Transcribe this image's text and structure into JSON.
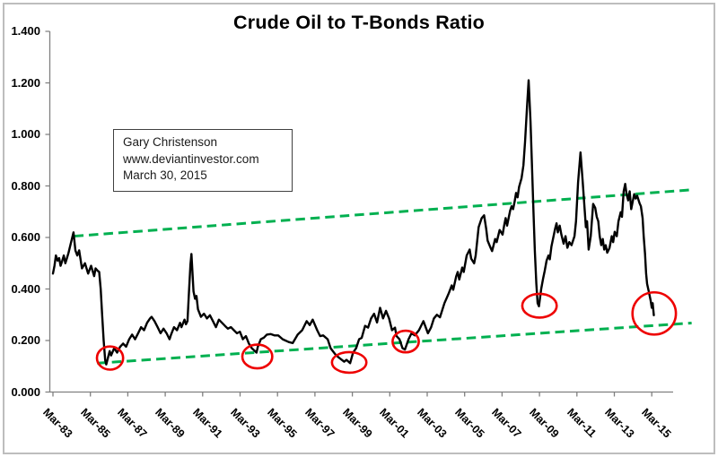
{
  "title": "Crude Oil to T-Bonds Ratio",
  "annotation": {
    "lines": [
      "Gary Christenson",
      "www.deviantinvestor.com",
      "March 30, 2015"
    ]
  },
  "colors": {
    "series": "#000000",
    "trendline": "#00B050",
    "highlight": "#EE0000",
    "axis": "#808080",
    "frame": "#BDBDBD"
  },
  "chart_data": {
    "type": "line",
    "title": "Crude Oil to T-Bonds Ratio",
    "xlabel": "",
    "ylabel": "",
    "grid": false,
    "legend": null,
    "x_axis": {
      "tick_labels": [
        "Mar-83",
        "Mar-85",
        "Mar-87",
        "Mar-89",
        "Mar-91",
        "Mar-93",
        "Mar-95",
        "Mar-97",
        "Mar-99",
        "Mar-01",
        "Mar-03",
        "Mar-05",
        "Mar-07",
        "Mar-09",
        "Mar-11",
        "Mar-13",
        "Mar-15"
      ],
      "range_years": [
        1983.17,
        2015.17
      ]
    },
    "y_axis": {
      "tick_labels": [
        "0.000",
        "0.200",
        "0.400",
        "0.600",
        "0.800",
        "1.000",
        "1.200",
        "1.400"
      ],
      "min": 0,
      "max": 1.4,
      "step": 0.2
    },
    "series": [
      {
        "name": "crude-oil-to-tbonds-ratio",
        "points": [
          [
            1983.17,
            0.46
          ],
          [
            1983.25,
            0.49
          ],
          [
            1983.33,
            0.53
          ],
          [
            1983.42,
            0.51
          ],
          [
            1983.5,
            0.52
          ],
          [
            1983.58,
            0.49
          ],
          [
            1983.67,
            0.51
          ],
          [
            1983.75,
            0.53
          ],
          [
            1983.83,
            0.5
          ],
          [
            1983.92,
            0.52
          ],
          [
            1984.0,
            0.54
          ],
          [
            1984.1,
            0.57
          ],
          [
            1984.27,
            0.62
          ],
          [
            1984.37,
            0.55
          ],
          [
            1984.47,
            0.53
          ],
          [
            1984.57,
            0.55
          ],
          [
            1984.72,
            0.48
          ],
          [
            1984.88,
            0.5
          ],
          [
            1985.05,
            0.46
          ],
          [
            1985.21,
            0.49
          ],
          [
            1985.37,
            0.45
          ],
          [
            1985.45,
            0.48
          ],
          [
            1985.57,
            0.47
          ],
          [
            1985.64,
            0.466
          ],
          [
            1985.72,
            0.4
          ],
          [
            1985.8,
            0.3
          ],
          [
            1985.88,
            0.2
          ],
          [
            1985.96,
            0.124
          ],
          [
            1986.02,
            0.107
          ],
          [
            1986.12,
            0.136
          ],
          [
            1986.2,
            0.159
          ],
          [
            1986.28,
            0.142
          ],
          [
            1986.44,
            0.17
          ],
          [
            1986.6,
            0.153
          ],
          [
            1986.76,
            0.176
          ],
          [
            1986.92,
            0.188
          ],
          [
            1987.08,
            0.176
          ],
          [
            1987.24,
            0.205
          ],
          [
            1987.4,
            0.223
          ],
          [
            1987.56,
            0.205
          ],
          [
            1987.72,
            0.228
          ],
          [
            1987.88,
            0.252
          ],
          [
            1988.04,
            0.24
          ],
          [
            1988.2,
            0.269
          ],
          [
            1988.36,
            0.286
          ],
          [
            1988.44,
            0.292
          ],
          [
            1988.6,
            0.275
          ],
          [
            1988.76,
            0.252
          ],
          [
            1988.92,
            0.228
          ],
          [
            1989.08,
            0.246
          ],
          [
            1989.24,
            0.228
          ],
          [
            1989.4,
            0.205
          ],
          [
            1989.48,
            0.223
          ],
          [
            1989.64,
            0.252
          ],
          [
            1989.8,
            0.24
          ],
          [
            1989.96,
            0.269
          ],
          [
            1990.04,
            0.252
          ],
          [
            1990.2,
            0.281
          ],
          [
            1990.28,
            0.263
          ],
          [
            1990.36,
            0.275
          ],
          [
            1990.44,
            0.391
          ],
          [
            1990.52,
            0.495
          ],
          [
            1990.57,
            0.536
          ],
          [
            1990.68,
            0.391
          ],
          [
            1990.76,
            0.362
          ],
          [
            1990.84,
            0.373
          ],
          [
            1990.92,
            0.321
          ],
          [
            1991.08,
            0.292
          ],
          [
            1991.24,
            0.304
          ],
          [
            1991.4,
            0.286
          ],
          [
            1991.56,
            0.298
          ],
          [
            1991.72,
            0.275
          ],
          [
            1991.88,
            0.252
          ],
          [
            1992.04,
            0.281
          ],
          [
            1992.2,
            0.269
          ],
          [
            1992.36,
            0.257
          ],
          [
            1992.52,
            0.246
          ],
          [
            1992.68,
            0.252
          ],
          [
            1992.84,
            0.24
          ],
          [
            1993.0,
            0.228
          ],
          [
            1993.16,
            0.234
          ],
          [
            1993.32,
            0.205
          ],
          [
            1993.48,
            0.217
          ],
          [
            1993.64,
            0.188
          ],
          [
            1993.8,
            0.17
          ],
          [
            1993.96,
            0.159
          ],
          [
            1994.05,
            0.153
          ],
          [
            1994.12,
            0.176
          ],
          [
            1994.28,
            0.205
          ],
          [
            1994.44,
            0.211
          ],
          [
            1994.6,
            0.223
          ],
          [
            1994.8,
            0.225
          ],
          [
            1995.0,
            0.22
          ],
          [
            1995.21,
            0.22
          ],
          [
            1995.45,
            0.205
          ],
          [
            1995.77,
            0.194
          ],
          [
            1995.98,
            0.19
          ],
          [
            1996.25,
            0.223
          ],
          [
            1996.49,
            0.24
          ],
          [
            1996.73,
            0.275
          ],
          [
            1996.89,
            0.26
          ],
          [
            1997.05,
            0.281
          ],
          [
            1997.29,
            0.24
          ],
          [
            1997.45,
            0.217
          ],
          [
            1997.61,
            0.22
          ],
          [
            1997.85,
            0.205
          ],
          [
            1998.01,
            0.17
          ],
          [
            1998.25,
            0.147
          ],
          [
            1998.41,
            0.136
          ],
          [
            1998.73,
            0.118
          ],
          [
            1998.86,
            0.125
          ],
          [
            1999.05,
            0.112
          ],
          [
            1999.21,
            0.153
          ],
          [
            1999.37,
            0.17
          ],
          [
            1999.53,
            0.205
          ],
          [
            1999.67,
            0.21
          ],
          [
            1999.85,
            0.257
          ],
          [
            2000.01,
            0.25
          ],
          [
            2000.17,
            0.286
          ],
          [
            2000.33,
            0.304
          ],
          [
            2000.49,
            0.27
          ],
          [
            2000.65,
            0.327
          ],
          [
            2000.81,
            0.286
          ],
          [
            2000.97,
            0.315
          ],
          [
            2001.13,
            0.286
          ],
          [
            2001.29,
            0.24
          ],
          [
            2001.45,
            0.25
          ],
          [
            2001.53,
            0.217
          ],
          [
            2001.69,
            0.205
          ],
          [
            2001.85,
            0.17
          ],
          [
            2001.98,
            0.165
          ],
          [
            2002.17,
            0.205
          ],
          [
            2002.33,
            0.228
          ],
          [
            2002.51,
            0.22
          ],
          [
            2002.73,
            0.24
          ],
          [
            2002.97,
            0.275
          ],
          [
            2003.21,
            0.228
          ],
          [
            2003.37,
            0.25
          ],
          [
            2003.53,
            0.286
          ],
          [
            2003.69,
            0.3
          ],
          [
            2003.85,
            0.29
          ],
          [
            2004.09,
            0.345
          ],
          [
            2004.21,
            0.365
          ],
          [
            2004.33,
            0.385
          ],
          [
            2004.48,
            0.414
          ],
          [
            2004.56,
            0.397
          ],
          [
            2004.72,
            0.449
          ],
          [
            2004.8,
            0.466
          ],
          [
            2004.88,
            0.437
          ],
          [
            2005.04,
            0.483
          ],
          [
            2005.12,
            0.466
          ],
          [
            2005.28,
            0.53
          ],
          [
            2005.44,
            0.553
          ],
          [
            2005.52,
            0.518
          ],
          [
            2005.68,
            0.5
          ],
          [
            2005.76,
            0.53
          ],
          [
            2005.92,
            0.64
          ],
          [
            2006.08,
            0.675
          ],
          [
            2006.21,
            0.686
          ],
          [
            2006.32,
            0.634
          ],
          [
            2006.4,
            0.588
          ],
          [
            2006.56,
            0.559
          ],
          [
            2006.64,
            0.547
          ],
          [
            2006.8,
            0.594
          ],
          [
            2006.88,
            0.582
          ],
          [
            2007.04,
            0.629
          ],
          [
            2007.2,
            0.611
          ],
          [
            2007.28,
            0.646
          ],
          [
            2007.36,
            0.675
          ],
          [
            2007.44,
            0.646
          ],
          [
            2007.6,
            0.704
          ],
          [
            2007.68,
            0.721
          ],
          [
            2007.76,
            0.71
          ],
          [
            2007.84,
            0.739
          ],
          [
            2007.92,
            0.773
          ],
          [
            2008.0,
            0.756
          ],
          [
            2008.08,
            0.797
          ],
          [
            2008.21,
            0.83
          ],
          [
            2008.31,
            0.88
          ],
          [
            2008.4,
            0.97
          ],
          [
            2008.5,
            1.1
          ],
          [
            2008.59,
            1.21
          ],
          [
            2008.69,
            1.05
          ],
          [
            2008.78,
            0.85
          ],
          [
            2008.85,
            0.7
          ],
          [
            2008.92,
            0.55
          ],
          [
            2009.0,
            0.42
          ],
          [
            2009.07,
            0.345
          ],
          [
            2009.14,
            0.333
          ],
          [
            2009.26,
            0.4
          ],
          [
            2009.36,
            0.44
          ],
          [
            2009.45,
            0.47
          ],
          [
            2009.55,
            0.51
          ],
          [
            2009.65,
            0.53
          ],
          [
            2009.72,
            0.515
          ],
          [
            2009.81,
            0.565
          ],
          [
            2009.91,
            0.6
          ],
          [
            2010.01,
            0.635
          ],
          [
            2010.08,
            0.655
          ],
          [
            2010.15,
            0.62
          ],
          [
            2010.25,
            0.646
          ],
          [
            2010.34,
            0.611
          ],
          [
            2010.46,
            0.576
          ],
          [
            2010.56,
            0.605
          ],
          [
            2010.66,
            0.56
          ],
          [
            2010.76,
            0.582
          ],
          [
            2010.88,
            0.57
          ],
          [
            2011.04,
            0.605
          ],
          [
            2011.12,
            0.663
          ],
          [
            2011.23,
            0.814
          ],
          [
            2011.36,
            0.93
          ],
          [
            2011.48,
            0.814
          ],
          [
            2011.55,
            0.744
          ],
          [
            2011.65,
            0.64
          ],
          [
            2011.71,
            0.663
          ],
          [
            2011.8,
            0.553
          ],
          [
            2011.91,
            0.605
          ],
          [
            2012.04,
            0.73
          ],
          [
            2012.15,
            0.715
          ],
          [
            2012.23,
            0.68
          ],
          [
            2012.31,
            0.663
          ],
          [
            2012.39,
            0.605
          ],
          [
            2012.47,
            0.57
          ],
          [
            2012.55,
            0.594
          ],
          [
            2012.63,
            0.553
          ],
          [
            2012.71,
            0.57
          ],
          [
            2012.79,
            0.541
          ],
          [
            2012.91,
            0.559
          ],
          [
            2013.03,
            0.605
          ],
          [
            2013.11,
            0.582
          ],
          [
            2013.19,
            0.622
          ],
          [
            2013.3,
            0.605
          ],
          [
            2013.39,
            0.663
          ],
          [
            2013.51,
            0.698
          ],
          [
            2013.58,
            0.68
          ],
          [
            2013.67,
            0.779
          ],
          [
            2013.75,
            0.808
          ],
          [
            2013.82,
            0.768
          ],
          [
            2013.91,
            0.744
          ],
          [
            2013.99,
            0.779
          ],
          [
            2014.07,
            0.71
          ],
          [
            2014.15,
            0.738
          ],
          [
            2014.23,
            0.768
          ],
          [
            2014.31,
            0.751
          ],
          [
            2014.39,
            0.762
          ],
          [
            2014.52,
            0.733
          ],
          [
            2014.59,
            0.721
          ],
          [
            2014.68,
            0.675
          ],
          [
            2014.74,
            0.605
          ],
          [
            2014.81,
            0.536
          ],
          [
            2014.87,
            0.46
          ],
          [
            2014.92,
            0.42
          ],
          [
            2015.01,
            0.39
          ],
          [
            2015.11,
            0.356
          ],
          [
            2015.17,
            0.327
          ],
          [
            2015.22,
            0.345
          ],
          [
            2015.28,
            0.298
          ]
        ]
      }
    ],
    "trendlines": [
      {
        "name": "upper-channel-resistance",
        "points": [
          [
            1984.3,
            0.605
          ],
          [
            2017.3,
            0.785
          ]
        ]
      },
      {
        "name": "lower-channel-support",
        "points": [
          [
            1985.53,
            0.112
          ],
          [
            2017.3,
            0.268
          ]
        ]
      }
    ],
    "highlighted_lows": [
      {
        "year": 1986.22,
        "value": 0.132,
        "r_years": 0.7,
        "r_value": 0.045
      },
      {
        "year": 1994.09,
        "value": 0.138,
        "r_years": 0.8,
        "r_value": 0.046
      },
      {
        "year": 1999.0,
        "value": 0.115,
        "r_years": 0.92,
        "r_value": 0.04
      },
      {
        "year": 2002.02,
        "value": 0.196,
        "r_years": 0.7,
        "r_value": 0.042
      },
      {
        "year": 2009.17,
        "value": 0.335,
        "r_years": 0.92,
        "r_value": 0.046
      },
      {
        "year": 2015.3,
        "value": 0.305,
        "r_years": 1.16,
        "r_value": 0.082
      }
    ]
  }
}
